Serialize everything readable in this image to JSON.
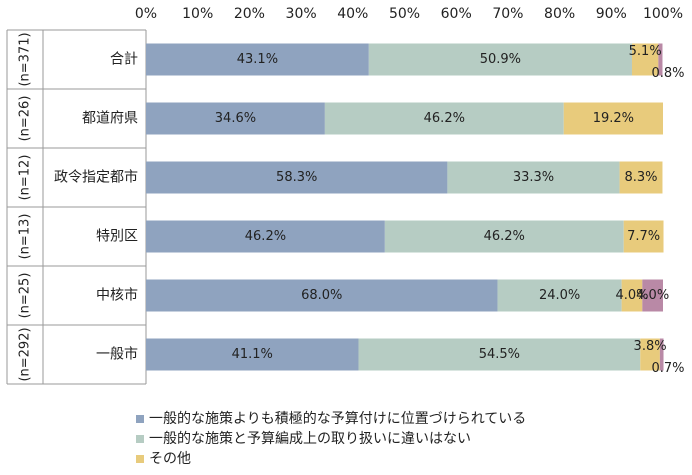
{
  "chart_data": {
    "type": "bar",
    "orientation": "horizontal",
    "stacked": "percent",
    "x_axis": {
      "ticks": [
        "0%",
        "10%",
        "20%",
        "30%",
        "40%",
        "50%",
        "60%",
        "70%",
        "80%",
        "90%",
        "100%"
      ],
      "range": [
        0,
        100
      ],
      "position": "top"
    },
    "grid": false,
    "legend_placement": "bottom-left",
    "categories": [
      {
        "group": "(n=371)",
        "label": "合計"
      },
      {
        "group": "(n=26)",
        "label": "都道府県"
      },
      {
        "group": "(n=12)",
        "label": "政令指定都市"
      },
      {
        "group": "(n=13)",
        "label": "特別区"
      },
      {
        "group": "(n=25)",
        "label": "中核市"
      },
      {
        "group": "(n=292)",
        "label": "一般市"
      }
    ],
    "series": [
      {
        "name": "一般的な施策よりも積極的な予算付けに位置づけられている",
        "color": "#8fa3bf",
        "values": [
          43.1,
          34.6,
          58.3,
          46.2,
          68.0,
          41.1
        ],
        "labels": [
          "43.1%",
          "34.6%",
          "58.3%",
          "46.2%",
          "68.0%",
          "41.1%"
        ]
      },
      {
        "name": "一般的な施策と予算編成上の取り扱いに違いはない",
        "color": "#b6ccc3",
        "values": [
          50.9,
          46.2,
          33.3,
          46.2,
          24.0,
          54.5
        ],
        "labels": [
          "50.9%",
          "46.2%",
          "33.3%",
          "46.2%",
          "24.0%",
          "54.5%"
        ]
      },
      {
        "name": "その他",
        "color": "#e8cb7c",
        "values": [
          5.1,
          19.2,
          8.3,
          7.7,
          4.0,
          3.8
        ],
        "labels": [
          "5.1%",
          "19.2%",
          "8.3%",
          "7.7%",
          "4.0%",
          "3.8%"
        ]
      },
      {
        "name": "",
        "color": "#b989a6",
        "values": [
          0.8,
          0.0,
          0.0,
          0.0,
          4.0,
          0.7
        ],
        "labels": [
          "0.8%",
          "",
          "",
          "",
          "4.0%",
          "0.7%"
        ]
      }
    ]
  }
}
